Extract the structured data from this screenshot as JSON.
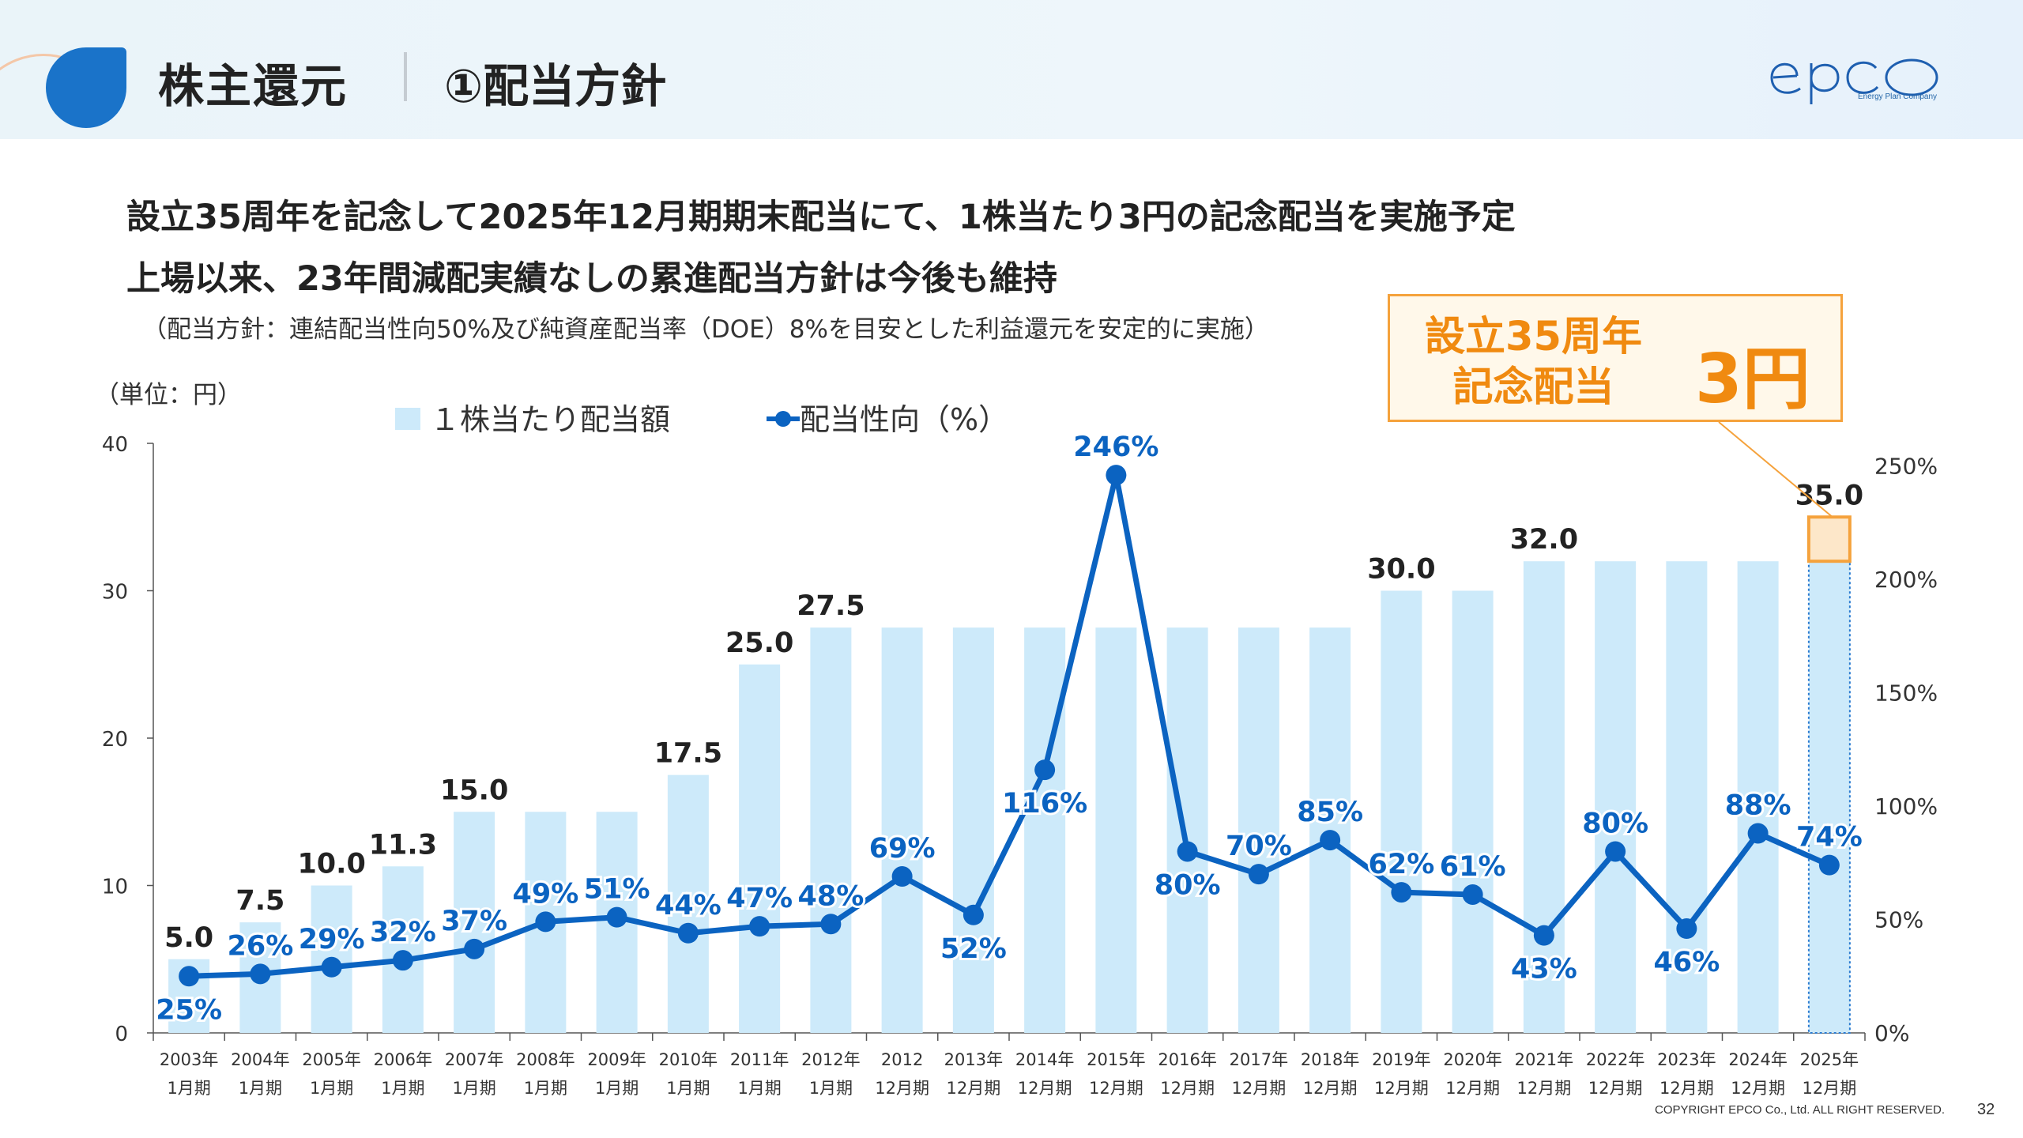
{
  "header": {
    "section_title": "株主還元",
    "page_title": "①配当方針",
    "brand": {
      "name": "epco",
      "tagline": "Energy Plan Company"
    }
  },
  "headline": {
    "line1": "設立35周年を記念して2025年12月期期末配当にて、1株当たり3円の記念配当を実施予定",
    "line2": "上場以来、23年間減配実績なしの累進配当方針は今後も維持",
    "note": "（配当方針：連結配当性向50%及び純資産配当率（DOE）8%を目安とした利益還元を安定的に実施）"
  },
  "callout": {
    "line1": "設立35周年",
    "line2": "記念配当",
    "amount": "3円"
  },
  "colors": {
    "bar": "#cdeafa",
    "line": "#0b63c1",
    "accent": "#f5a23c",
    "logo": "#1a73c9"
  },
  "chart_data": {
    "type": "bar",
    "unit_label": "（単位：円）",
    "categories": [
      [
        "2003年",
        "1月期"
      ],
      [
        "2004年",
        "1月期"
      ],
      [
        "2005年",
        "1月期"
      ],
      [
        "2006年",
        "1月期"
      ],
      [
        "2007年",
        "1月期"
      ],
      [
        "2008年",
        "1月期"
      ],
      [
        "2009年",
        "1月期"
      ],
      [
        "2010年",
        "1月期"
      ],
      [
        "2011年",
        "1月期"
      ],
      [
        "2012年",
        "1月期"
      ],
      [
        "2012",
        "12月期"
      ],
      [
        "2013年",
        "12月期"
      ],
      [
        "2014年",
        "12月期"
      ],
      [
        "2015年",
        "12月期"
      ],
      [
        "2016年",
        "12月期"
      ],
      [
        "2017年",
        "12月期"
      ],
      [
        "2018年",
        "12月期"
      ],
      [
        "2019年",
        "12月期"
      ],
      [
        "2020年",
        "12月期"
      ],
      [
        "2021年",
        "12月期"
      ],
      [
        "2022年",
        "12月期"
      ],
      [
        "2023年",
        "12月期"
      ],
      [
        "2024年",
        "12月期"
      ],
      [
        "2025年",
        "12月期"
      ]
    ],
    "series": [
      {
        "name": "１株当たり配当額",
        "type": "bar",
        "axis": "left",
        "values": [
          5.0,
          7.5,
          10.0,
          11.3,
          15.0,
          15.0,
          15.0,
          17.5,
          25.0,
          27.5,
          27.5,
          27.5,
          27.5,
          27.5,
          27.5,
          27.5,
          27.5,
          30.0,
          30.0,
          32.0,
          32.0,
          32.0,
          32.0,
          35.0
        ],
        "labels": [
          {
            "index": 0,
            "text": "5.0"
          },
          {
            "index": 1,
            "text": "7.5"
          },
          {
            "index": 2,
            "text": "10.0"
          },
          {
            "index": 3,
            "text": "11.3"
          },
          {
            "index": 4,
            "text": "15.0"
          },
          {
            "index": 7,
            "text": "17.5"
          },
          {
            "index": 8,
            "text": "25.0"
          },
          {
            "index": 9,
            "text": "27.5"
          },
          {
            "index": 17,
            "text": "30.0"
          },
          {
            "index": 19,
            "text": "32.0"
          },
          {
            "index": 23,
            "text": "35.0"
          }
        ],
        "highlight": {
          "index": 23,
          "base": 32.0,
          "extra": 3.0
        }
      },
      {
        "name": "配当性向（%）",
        "type": "line",
        "axis": "right",
        "values": [
          25,
          26,
          29,
          32,
          37,
          49,
          51,
          44,
          47,
          48,
          69,
          52,
          116,
          246,
          80,
          70,
          85,
          62,
          61,
          43,
          80,
          46,
          88,
          74
        ],
        "labels": [
          "25%",
          "26%",
          "29%",
          "32%",
          "37%",
          "49%",
          "51%",
          "44%",
          "47%",
          "48%",
          "69%",
          "52%",
          "116%",
          "246%",
          "80%",
          "70%",
          "85%",
          "62%",
          "61%",
          "43%",
          "80%",
          "46%",
          "88%",
          "74%"
        ],
        "label_side": [
          "below",
          "above",
          "above",
          "above",
          "above",
          "above",
          "above",
          "above",
          "above",
          "above",
          "above",
          "below",
          "below",
          "above",
          "below",
          "above",
          "above",
          "above",
          "above",
          "below",
          "above",
          "below",
          "above",
          "above"
        ]
      }
    ],
    "y_left": {
      "ticks": [
        "0",
        "10",
        "20",
        "30",
        "40"
      ],
      "ylim": [
        0,
        40
      ]
    },
    "y_right": {
      "ticks": [
        "0%",
        "50%",
        "100%",
        "150%",
        "200%",
        "250%"
      ],
      "ylim": [
        0,
        260
      ]
    },
    "legend": "top-left"
  },
  "footer": {
    "copyright": "COPYRIGHT EPCO Co., Ltd. ALL RIGHT RESERVED.",
    "page": "32"
  }
}
